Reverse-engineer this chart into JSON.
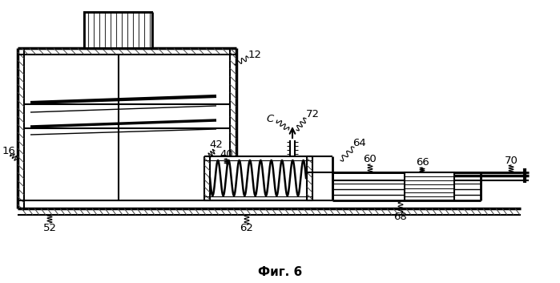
{
  "title": "Фиг. 6",
  "bg_color": "#ffffff",
  "line_color": "#000000"
}
